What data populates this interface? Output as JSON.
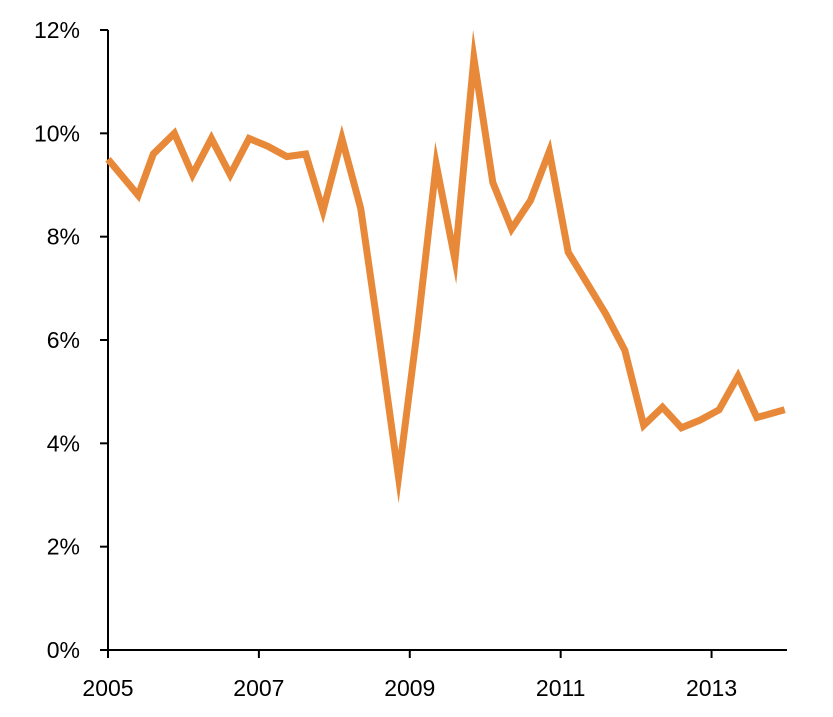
{
  "chart_data": {
    "type": "line",
    "title": "",
    "xlabel": "",
    "ylabel": "",
    "x_ticks": [
      "2005",
      "2007",
      "2009",
      "2011",
      "2013"
    ],
    "x_tick_values": [
      2005,
      2007,
      2009,
      2011,
      2013
    ],
    "y_ticks": [
      "0%",
      "2%",
      "4%",
      "6%",
      "8%",
      "10%",
      "12%"
    ],
    "y_tick_values": [
      0,
      2,
      4,
      6,
      8,
      10,
      12
    ],
    "xlim": [
      2005,
      2014
    ],
    "ylim": [
      0,
      12
    ],
    "grid": false,
    "legend": "none",
    "series": [
      {
        "color": "#E8893A",
        "x": [
          2005.0,
          2005.4,
          2005.6,
          2005.88,
          2006.12,
          2006.37,
          2006.62,
          2006.87,
          2007.12,
          2007.37,
          2007.62,
          2007.85,
          2008.1,
          2008.35,
          2008.6,
          2008.85,
          2009.1,
          2009.35,
          2009.6,
          2009.85,
          2010.1,
          2010.35,
          2010.6,
          2010.85,
          2011.1,
          2011.35,
          2011.6,
          2011.85,
          2012.1,
          2012.35,
          2012.6,
          2012.85,
          2013.1,
          2013.35,
          2013.6,
          2013.85,
          2013.97
        ],
        "values": [
          9.5,
          8.8,
          9.6,
          10.0,
          9.2,
          9.9,
          9.2,
          9.9,
          9.75,
          9.55,
          9.6,
          8.5,
          9.9,
          8.55,
          6.0,
          3.35,
          6.2,
          9.4,
          7.55,
          11.45,
          9.05,
          8.15,
          8.7,
          9.65,
          7.7,
          7.1,
          6.5,
          5.8,
          4.35,
          4.7,
          4.3,
          4.45,
          4.65,
          5.3,
          4.5,
          4.6,
          4.65
        ]
      }
    ]
  }
}
